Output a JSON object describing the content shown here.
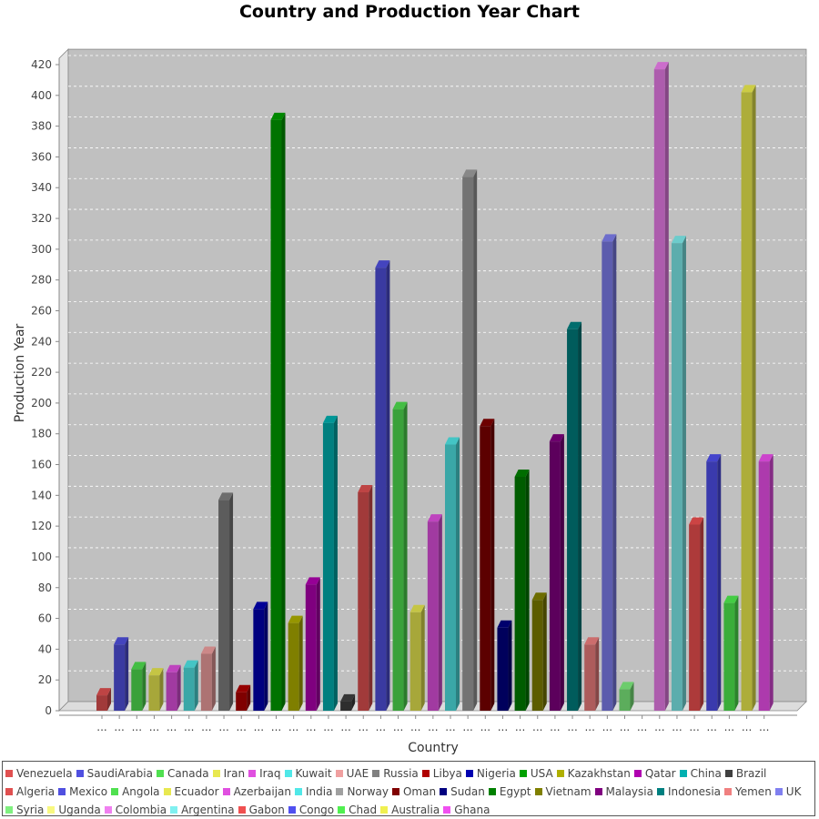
{
  "chart_data": {
    "type": "bar",
    "title": "Country and Production Year Chart",
    "xlabel": "Country",
    "ylabel": "Production Year",
    "ylim": [
      0,
      430
    ],
    "yticks": [
      0,
      20,
      40,
      60,
      80,
      100,
      120,
      140,
      160,
      180,
      200,
      220,
      240,
      260,
      280,
      300,
      320,
      340,
      360,
      380,
      400,
      420
    ],
    "grid": true,
    "legend_position": "bottom",
    "category_tick_label": "...",
    "series": [
      {
        "name": "Venezuela",
        "value": 10,
        "color": "#e05050"
      },
      {
        "name": "SaudiArabia",
        "value": 43,
        "color": "#5050e0"
      },
      {
        "name": "Canada",
        "value": 27,
        "color": "#50e050"
      },
      {
        "name": "Iran",
        "value": 23,
        "color": "#e8e850"
      },
      {
        "name": "Iraq",
        "value": 25,
        "color": "#e050e0"
      },
      {
        "name": "Kuwait",
        "value": 28,
        "color": "#50e8e8"
      },
      {
        "name": "UAE",
        "value": 37,
        "color": "#f0a0a0"
      },
      {
        "name": "Russia",
        "value": 137,
        "color": "#808080"
      },
      {
        "name": "Libya",
        "value": 12,
        "color": "#b00000"
      },
      {
        "name": "Nigeria",
        "value": 66,
        "color": "#0000b0"
      },
      {
        "name": "USA",
        "value": 384,
        "color": "#00a000"
      },
      {
        "name": "Kazakhstan",
        "value": 57,
        "color": "#b0b000"
      },
      {
        "name": "Qatar",
        "value": 82,
        "color": "#b000b0"
      },
      {
        "name": "China",
        "value": 187,
        "color": "#00b0b0"
      },
      {
        "name": "Brazil",
        "value": 6,
        "color": "#404040"
      },
      {
        "name": "Algeria",
        "value": 142,
        "color": "#e05050"
      },
      {
        "name": "Mexico",
        "value": 288,
        "color": "#5050e0"
      },
      {
        "name": "Angola",
        "value": 196,
        "color": "#50e050"
      },
      {
        "name": "Ecuador",
        "value": 64,
        "color": "#e8e850"
      },
      {
        "name": "Azerbaijan",
        "value": 123,
        "color": "#e050e0"
      },
      {
        "name": "India",
        "value": 173,
        "color": "#50e8e8"
      },
      {
        "name": "Norway",
        "value": 347,
        "color": "#a0a0a0"
      },
      {
        "name": "Oman",
        "value": 185,
        "color": "#800000"
      },
      {
        "name": "Sudan",
        "value": 54,
        "color": "#000080"
      },
      {
        "name": "Egypt",
        "value": 152,
        "color": "#008000"
      },
      {
        "name": "Vietnam",
        "value": 72,
        "color": "#808000"
      },
      {
        "name": "Malaysia",
        "value": 175,
        "color": "#800080"
      },
      {
        "name": "Indonesia",
        "value": 248,
        "color": "#008080"
      },
      {
        "name": "Yemen",
        "value": 43,
        "color": "#f08080"
      },
      {
        "name": "UK",
        "value": 305,
        "color": "#8080f0"
      },
      {
        "name": "Syria",
        "value": 14,
        "color": "#80f080"
      },
      {
        "name": "Uganda",
        "value": 0,
        "color": "#f8f880"
      },
      {
        "name": "Colombia",
        "value": 417,
        "color": "#f080f0"
      },
      {
        "name": "Argentina",
        "value": 304,
        "color": "#80f0f0"
      },
      {
        "name": "Gabon",
        "value": 121,
        "color": "#f05050"
      },
      {
        "name": "Congo",
        "value": 162,
        "color": "#5050f0"
      },
      {
        "name": "Chad",
        "value": 70,
        "color": "#50f050"
      },
      {
        "name": "Australia",
        "value": 402,
        "color": "#f0f050"
      },
      {
        "name": "Ghana",
        "value": 162,
        "color": "#f050f0"
      }
    ]
  }
}
